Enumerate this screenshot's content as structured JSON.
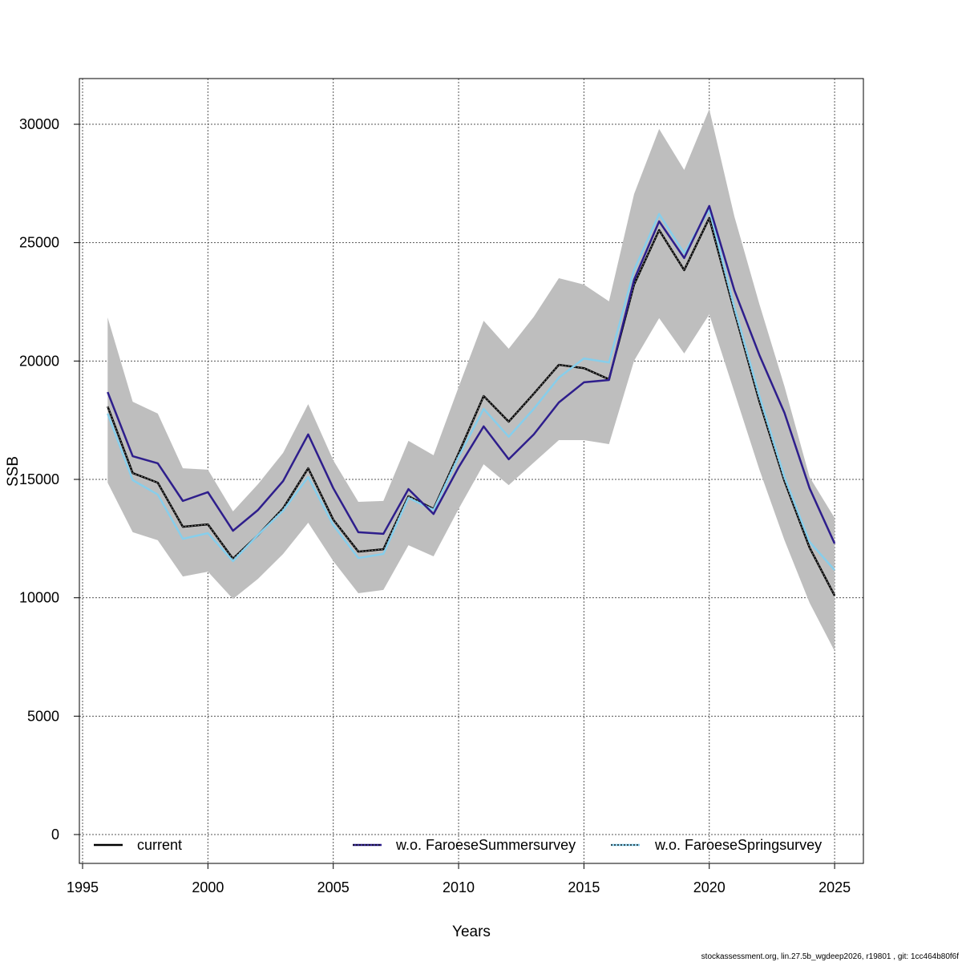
{
  "chart_data": {
    "type": "line",
    "title": "",
    "xlabel": "Years",
    "ylabel": "SSB",
    "xlim": [
      1995,
      2026
    ],
    "ylim": [
      -1200,
      32000
    ],
    "grid": true,
    "x_ticks": [
      "1995",
      "2000",
      "2005",
      "2010",
      "2015",
      "2020",
      "2025"
    ],
    "y_ticks": [
      "0",
      "5000",
      "10000",
      "15000",
      "20000",
      "25000",
      "30000"
    ],
    "legend_placement": "bottom",
    "x": [
      1996,
      1997,
      1998,
      1999,
      2000,
      2001,
      2002,
      2003,
      2004,
      2005,
      2006,
      2007,
      2008,
      2009,
      2010,
      2011,
      2012,
      2013,
      2014,
      2015,
      2016,
      2017,
      2018,
      2019,
      2020,
      2021,
      2022,
      2023,
      2024,
      2025
    ],
    "confidence_band": {
      "color": "#bebebe",
      "upper": [
        21840,
        18280,
        17780,
        15470,
        15410,
        13650,
        14800,
        16120,
        18180,
        15810,
        14050,
        14090,
        16630,
        16020,
        18900,
        21700,
        20520,
        21870,
        23500,
        23230,
        22520,
        27050,
        29800,
        28070,
        30640,
        26110,
        22400,
        18930,
        15100,
        13370
      ],
      "lower": [
        14860,
        12770,
        12430,
        10900,
        11100,
        9950,
        10800,
        11850,
        13170,
        11550,
        10190,
        10330,
        12220,
        11750,
        13750,
        15640,
        14760,
        15710,
        16660,
        16660,
        16490,
        20010,
        21810,
        20320,
        21970,
        18690,
        15410,
        12430,
        9790,
        7750
      ]
    },
    "series": [
      {
        "name": "current",
        "color": "#000000",
        "dashed_overlay": true,
        "values": [
          18080,
          15270,
          14860,
          13000,
          13100,
          11650,
          12650,
          13780,
          15470,
          13300,
          11950,
          12050,
          14290,
          13750,
          16100,
          18520,
          17440,
          18620,
          19840,
          19700,
          19230,
          23230,
          25530,
          23840,
          26040,
          22100,
          18290,
          14930,
          12120,
          10090
        ]
      },
      {
        "name": "w.o. FaroeseSummersurvey",
        "color": "#2e1e8c",
        "values": [
          18690,
          15980,
          15680,
          14090,
          14460,
          12830,
          13710,
          14930,
          16900,
          14630,
          12770,
          12700,
          14590,
          13540,
          15510,
          17240,
          15850,
          16900,
          18250,
          19100,
          19200,
          23430,
          25900,
          24350,
          26550,
          22990,
          20250,
          17810,
          14630,
          12290
        ]
      },
      {
        "name": "w.o. FaroeseSpringsurvey",
        "color": "#87ceeb",
        "values": [
          17780,
          14970,
          14360,
          12490,
          12730,
          11550,
          12660,
          13680,
          15100,
          13070,
          11680,
          11850,
          14220,
          13710,
          15950,
          17980,
          16800,
          17980,
          19300,
          20110,
          19940,
          23840,
          26210,
          24550,
          26410,
          22280,
          18520,
          15100,
          12360,
          11170
        ]
      }
    ]
  },
  "footer": "stockassessment.org, lin.27.5b_wgdeep2026, r19801 , git: 1cc464b80f6f"
}
